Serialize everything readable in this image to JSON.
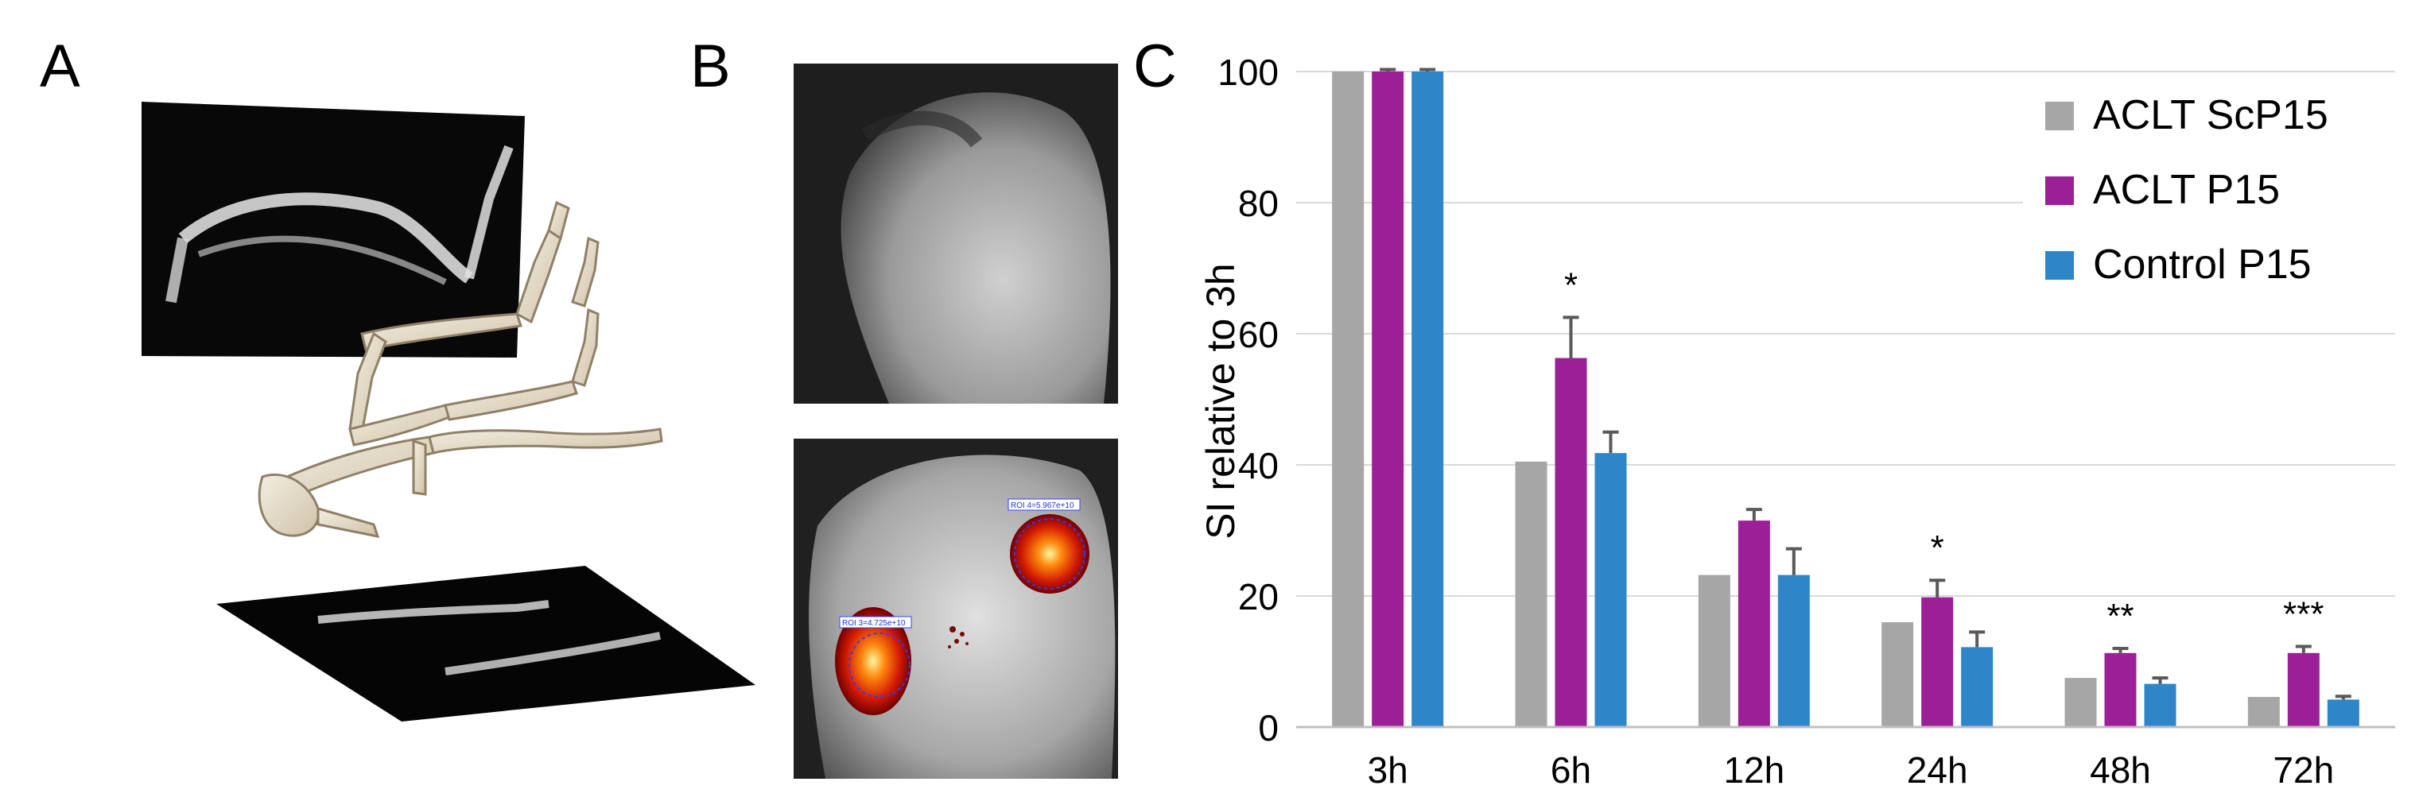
{
  "panels": {
    "a": {
      "letter": "A"
    },
    "b": {
      "letter": "B",
      "roi_labels": [
        "ROI 4=5.967e+10",
        "ROI 3=4.725e+10"
      ]
    },
    "c": {
      "letter": "C"
    }
  },
  "colors": {
    "ACLT ScP15": "#a6a6a6",
    "ACLT P15": "#9b1f96",
    "Control P15": "#2e86c8",
    "grid": "#d9d9d9"
  },
  "chart_data": {
    "type": "bar",
    "categories": [
      "3h",
      "6h",
      "12h",
      "24h",
      "48h",
      "72h"
    ],
    "ylabel": "SI relative to 3h",
    "xlabel": "",
    "ylim": [
      0,
      100
    ],
    "yticks": [
      0,
      20,
      40,
      60,
      80,
      100
    ],
    "grid": true,
    "legend": "top-right",
    "series": [
      {
        "name": "ACLT ScP15",
        "values": [
          100,
          40.5,
          23.2,
          16.0,
          7.5,
          4.6
        ],
        "errors": [
          0,
          0,
          0,
          0,
          0,
          0
        ]
      },
      {
        "name": "ACLT P15",
        "values": [
          100,
          56.3,
          31.5,
          19.8,
          11.3,
          11.3
        ],
        "errors": [
          0.3,
          6.2,
          1.7,
          2.6,
          0.7,
          1.0
        ]
      },
      {
        "name": "Control P15",
        "values": [
          100,
          41.8,
          23.2,
          12.2,
          6.6,
          4.2
        ],
        "errors": [
          0.3,
          3.2,
          4.0,
          2.3,
          0.9,
          0.5
        ]
      }
    ],
    "annotations": [
      "",
      "*",
      "",
      "*",
      "**",
      "***"
    ]
  }
}
